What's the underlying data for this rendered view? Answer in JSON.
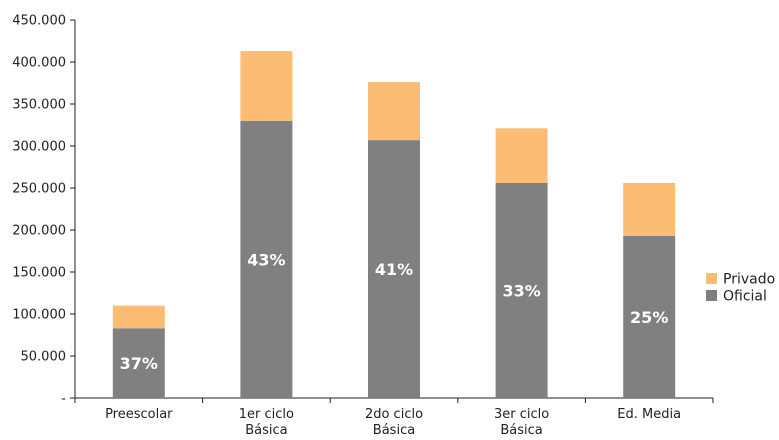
{
  "chart_data": {
    "type": "bar",
    "stacked": true,
    "categories": [
      [
        "Preescolar"
      ],
      [
        "1er ciclo",
        "Básica"
      ],
      [
        "2do ciclo",
        "Básica"
      ],
      [
        "3er ciclo",
        "Básica"
      ],
      [
        "Ed. Media"
      ]
    ],
    "series": [
      {
        "name": "Oficial",
        "color": "#808083",
        "values": [
          83000,
          330000,
          307000,
          256000,
          193000
        ]
      },
      {
        "name": "Privado",
        "color": "#FDBC74",
        "values": [
          27000,
          83000,
          69000,
          65000,
          63000
        ]
      }
    ],
    "data_labels": [
      "37%",
      "43%",
      "41%",
      "33%",
      "25%"
    ],
    "ylim": [
      0,
      450000
    ],
    "yticks": [
      {
        "value": 0,
        "label": "-"
      },
      {
        "value": 50000,
        "label": "50.000"
      },
      {
        "value": 100000,
        "label": "100.000"
      },
      {
        "value": 150000,
        "label": "150.000"
      },
      {
        "value": 200000,
        "label": "200.000"
      },
      {
        "value": 250000,
        "label": "250.000"
      },
      {
        "value": 300000,
        "label": "300.000"
      },
      {
        "value": 350000,
        "label": "350.000"
      },
      {
        "value": 400000,
        "label": "400.000"
      },
      {
        "value": 450000,
        "label": "450.000"
      }
    ],
    "legend": {
      "position": "right",
      "items": [
        {
          "name": "Privado",
          "color": "#FDBC74"
        },
        {
          "name": "Oficial",
          "color": "#808083"
        }
      ]
    },
    "grid": false,
    "title": "",
    "xlabel": "",
    "ylabel": ""
  }
}
